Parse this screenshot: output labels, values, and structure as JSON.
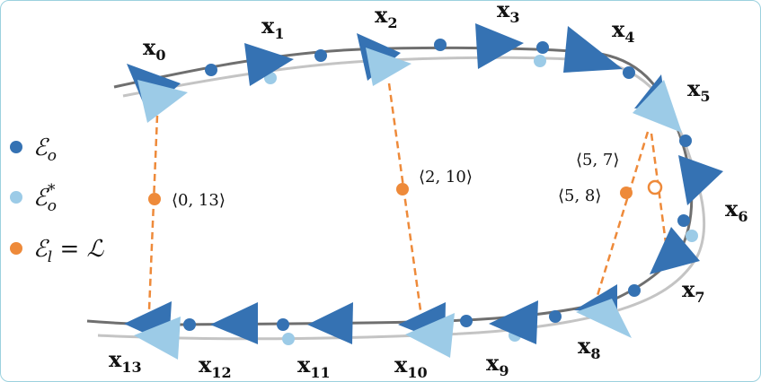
{
  "colors": {
    "odom_dark": "#3572b3",
    "odom_light": "#9ccbe7",
    "loop": "#ee8a3a",
    "track_dark": "#6f6f6f",
    "track_light": "#bdbdbd"
  },
  "legend": [
    {
      "label": "ℰ",
      "sub": "o",
      "sup": "",
      "suffix": "",
      "color": "#3572b3"
    },
    {
      "label": "ℰ",
      "sub": "o",
      "sup": "*",
      "suffix": "",
      "color": "#9ccbe7"
    },
    {
      "label": "ℰ",
      "sub": "l",
      "sup": "",
      "suffix": " = ℒ",
      "color": "#ee8a3a"
    }
  ],
  "nodes": [
    {
      "name": "x",
      "sub": "0"
    },
    {
      "name": "x",
      "sub": "1"
    },
    {
      "name": "x",
      "sub": "2"
    },
    {
      "name": "x",
      "sub": "3"
    },
    {
      "name": "x",
      "sub": "4"
    },
    {
      "name": "x",
      "sub": "5"
    },
    {
      "name": "x",
      "sub": "6"
    },
    {
      "name": "x",
      "sub": "7"
    },
    {
      "name": "x",
      "sub": "8"
    },
    {
      "name": "x",
      "sub": "9"
    },
    {
      "name": "x",
      "sub": "10"
    },
    {
      "name": "x",
      "sub": "11"
    },
    {
      "name": "x",
      "sub": "12"
    },
    {
      "name": "x",
      "sub": "13"
    }
  ],
  "loop_closures": [
    {
      "label": "⟨0, 13⟩",
      "from": 0,
      "to": 13
    },
    {
      "label": "⟨2, 10⟩",
      "from": 2,
      "to": 10
    },
    {
      "label": "⟨5, 7⟩",
      "from": 5,
      "to": 7
    },
    {
      "label": "⟨5, 8⟩",
      "from": 5,
      "to": 8
    }
  ]
}
